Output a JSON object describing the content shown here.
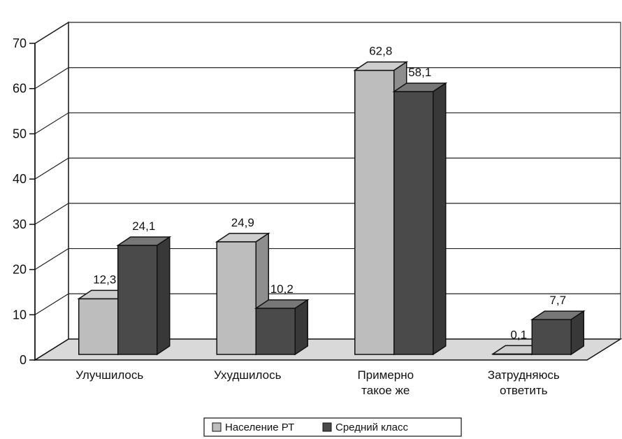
{
  "chart_data": {
    "type": "bar",
    "title": "",
    "xlabel": "",
    "ylabel": "",
    "ylim": [
      0,
      70
    ],
    "y_ticks": [
      0,
      10,
      20,
      30,
      40,
      50,
      60,
      70
    ],
    "y_tick_labels": [
      "0",
      "10",
      "20",
      "30",
      "40",
      "50",
      "60",
      "70"
    ],
    "grid": true,
    "style": "3d",
    "legend_position": "bottom",
    "categories": [
      [
        "Улучшилось"
      ],
      [
        "Ухудшилось"
      ],
      [
        "Примерно",
        "такое же"
      ],
      [
        "Затрудняюсь",
        "ответить"
      ]
    ],
    "series": [
      {
        "name": "Население РТ",
        "values": [
          12.3,
          24.9,
          62.8,
          0.1
        ],
        "labels": [
          "12,3",
          "24,9",
          "62,8",
          "0,1"
        ],
        "color": "#bdbdbd"
      },
      {
        "name": "Средний класс",
        "values": [
          24.1,
          10.2,
          58.1,
          7.7
        ],
        "labels": [
          "24,1",
          "10,2",
          "58,1",
          "7,7"
        ],
        "color": "#4a4a4a"
      }
    ]
  }
}
